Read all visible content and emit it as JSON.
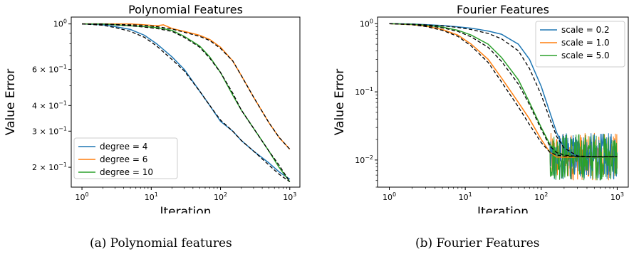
{
  "colors": {
    "blue": "#1f77b4",
    "orange": "#ff7f0e",
    "green": "#2ca02c",
    "fit": "#000000"
  },
  "captions": {
    "a": "(a) Polynomial features",
    "b": "(b) Fourier Features"
  },
  "chart_data": [
    {
      "type": "line",
      "title": "Polynomial Features",
      "xlabel": "Iteration",
      "ylabel": "Value Error",
      "xscale": "log",
      "yscale": "log",
      "xlim": [
        0.7,
        1400
      ],
      "ylim": [
        0.16,
        1.08
      ],
      "xticks": [
        {
          "v": 1,
          "base": "10",
          "exp": "0"
        },
        {
          "v": 10,
          "base": "10",
          "exp": "1"
        },
        {
          "v": 100,
          "base": "10",
          "exp": "2"
        },
        {
          "v": 1000,
          "base": "10",
          "exp": "3"
        }
      ],
      "yticks": [
        {
          "v": 1.0,
          "text": "10",
          "exp": "0"
        },
        {
          "v": 0.6,
          "text": "6 × 10",
          "exp": "−1"
        },
        {
          "v": 0.4,
          "text": "4 × 10",
          "exp": "−1"
        },
        {
          "v": 0.3,
          "text": "3 × 10",
          "exp": "−1"
        },
        {
          "v": 0.2,
          "text": "2 × 10",
          "exp": "−1"
        }
      ],
      "legend": {
        "position": "lower-left"
      },
      "series": [
        {
          "name": "degree = 4",
          "color": "blue",
          "x": [
            1,
            2,
            3,
            5,
            8,
            12,
            20,
            30,
            50,
            70,
            100,
            150,
            200,
            300,
            500,
            700,
            1000
          ],
          "y": [
            1.0,
            0.99,
            0.97,
            0.94,
            0.88,
            0.8,
            0.69,
            0.6,
            0.47,
            0.4,
            0.335,
            0.3,
            0.27,
            0.24,
            0.21,
            0.19,
            0.175
          ]
        },
        {
          "name": "degree = 6",
          "color": "orange",
          "x": [
            1,
            2,
            3,
            5,
            8,
            12,
            15,
            20,
            30,
            50,
            70,
            100,
            150,
            200,
            300,
            500,
            700,
            1000
          ],
          "y": [
            1.0,
            1.0,
            1.0,
            1.0,
            0.99,
            0.98,
            0.99,
            0.95,
            0.92,
            0.88,
            0.84,
            0.77,
            0.66,
            0.56,
            0.44,
            0.33,
            0.28,
            0.245
          ]
        },
        {
          "name": "degree = 10",
          "color": "green",
          "x": [
            1,
            2,
            3,
            5,
            8,
            12,
            20,
            30,
            50,
            70,
            100,
            150,
            200,
            300,
            500,
            700,
            1000
          ],
          "y": [
            1.0,
            1.0,
            0.99,
            0.98,
            0.97,
            0.96,
            0.93,
            0.87,
            0.78,
            0.69,
            0.58,
            0.45,
            0.38,
            0.31,
            0.24,
            0.2,
            0.17
          ]
        }
      ],
      "fits": [
        {
          "x": [
            1,
            2,
            3,
            5,
            8,
            12,
            20,
            30,
            50,
            70,
            100,
            150,
            200,
            300,
            500,
            700,
            1000
          ],
          "y": [
            1.0,
            0.985,
            0.96,
            0.92,
            0.86,
            0.78,
            0.67,
            0.59,
            0.47,
            0.4,
            0.34,
            0.3,
            0.27,
            0.24,
            0.205,
            0.185,
            0.17
          ]
        },
        {
          "x": [
            1,
            2,
            3,
            5,
            8,
            12,
            20,
            30,
            50,
            70,
            100,
            150,
            200,
            300,
            500,
            700,
            1000
          ],
          "y": [
            1.0,
            1.0,
            0.995,
            0.99,
            0.985,
            0.97,
            0.945,
            0.91,
            0.87,
            0.83,
            0.76,
            0.66,
            0.56,
            0.44,
            0.33,
            0.28,
            0.245
          ]
        },
        {
          "x": [
            1,
            2,
            3,
            5,
            8,
            12,
            20,
            30,
            50,
            70,
            100,
            150,
            200,
            300,
            500,
            700,
            1000
          ],
          "y": [
            1.0,
            0.995,
            0.99,
            0.98,
            0.965,
            0.95,
            0.92,
            0.86,
            0.77,
            0.68,
            0.58,
            0.46,
            0.38,
            0.31,
            0.24,
            0.205,
            0.17
          ]
        }
      ]
    },
    {
      "type": "line",
      "title": "Fourier Features",
      "xlabel": "Iteration",
      "ylabel": "Value Error",
      "xscale": "log",
      "yscale": "log",
      "xlim": [
        0.7,
        1400
      ],
      "ylim": [
        0.004,
        1.25
      ],
      "xticks": [
        {
          "v": 1,
          "base": "10",
          "exp": "0"
        },
        {
          "v": 10,
          "base": "10",
          "exp": "1"
        },
        {
          "v": 100,
          "base": "10",
          "exp": "2"
        },
        {
          "v": 1000,
          "base": "10",
          "exp": "3"
        }
      ],
      "yticks": [
        {
          "v": 1.0,
          "text": "10",
          "exp": "0"
        },
        {
          "v": 0.1,
          "text": "10",
          "exp": "−1"
        },
        {
          "v": 0.01,
          "text": "10",
          "exp": "−2"
        }
      ],
      "legend": {
        "position": "upper-right"
      },
      "series": [
        {
          "name": "scale = 0.2",
          "color": "blue",
          "x": [
            1,
            2,
            3,
            5,
            8,
            12,
            20,
            30,
            50,
            70,
            100,
            130,
            160,
            200,
            300,
            500,
            700,
            1000
          ],
          "y": [
            1.0,
            0.99,
            0.97,
            0.94,
            0.9,
            0.86,
            0.78,
            0.7,
            0.5,
            0.3,
            0.12,
            0.05,
            0.025,
            0.015,
            0.011,
            0.011,
            0.011,
            0.011
          ]
        },
        {
          "name": "scale = 1.0",
          "color": "orange",
          "x": [
            1,
            2,
            3,
            5,
            8,
            12,
            20,
            30,
            50,
            70,
            100,
            130,
            160,
            200,
            300,
            500,
            700,
            1000
          ],
          "y": [
            1.0,
            0.97,
            0.92,
            0.82,
            0.68,
            0.5,
            0.3,
            0.16,
            0.07,
            0.04,
            0.02,
            0.013,
            0.011,
            0.011,
            0.011,
            0.011,
            0.011,
            0.011
          ]
        },
        {
          "name": "scale = 5.0",
          "color": "green",
          "x": [
            1,
            2,
            3,
            5,
            8,
            12,
            20,
            30,
            50,
            70,
            100,
            130,
            160,
            200,
            300,
            500,
            700,
            1000
          ],
          "y": [
            1.0,
            0.98,
            0.95,
            0.89,
            0.8,
            0.68,
            0.5,
            0.32,
            0.15,
            0.07,
            0.03,
            0.017,
            0.013,
            0.012,
            0.011,
            0.011,
            0.011,
            0.011
          ]
        }
      ],
      "fits": [
        {
          "x": [
            1,
            2,
            3,
            5,
            8,
            12,
            20,
            30,
            50,
            70,
            100,
            130,
            160,
            200,
            300,
            500,
            700,
            1000
          ],
          "y": [
            1.0,
            0.985,
            0.96,
            0.93,
            0.88,
            0.82,
            0.72,
            0.6,
            0.4,
            0.22,
            0.09,
            0.04,
            0.022,
            0.015,
            0.0115,
            0.0112,
            0.0112,
            0.0112
          ]
        },
        {
          "x": [
            1,
            2,
            3,
            5,
            8,
            12,
            20,
            30,
            50,
            70,
            100,
            130,
            160,
            200,
            300,
            500,
            700,
            1000
          ],
          "y": [
            1.0,
            0.965,
            0.91,
            0.8,
            0.65,
            0.47,
            0.27,
            0.14,
            0.06,
            0.033,
            0.018,
            0.013,
            0.0118,
            0.0114,
            0.0112,
            0.0112,
            0.0112,
            0.0112
          ]
        },
        {
          "x": [
            1,
            2,
            3,
            5,
            8,
            12,
            20,
            30,
            50,
            70,
            100,
            130,
            160,
            200,
            300,
            500,
            700,
            1000
          ],
          "y": [
            1.0,
            0.975,
            0.94,
            0.87,
            0.77,
            0.64,
            0.45,
            0.28,
            0.13,
            0.065,
            0.028,
            0.016,
            0.0128,
            0.0118,
            0.0113,
            0.0112,
            0.0112,
            0.0112
          ]
        }
      ],
      "noise": {
        "start": 130,
        "end": 1000,
        "center": 0.011,
        "low": 0.005,
        "high": 0.025
      }
    }
  ]
}
